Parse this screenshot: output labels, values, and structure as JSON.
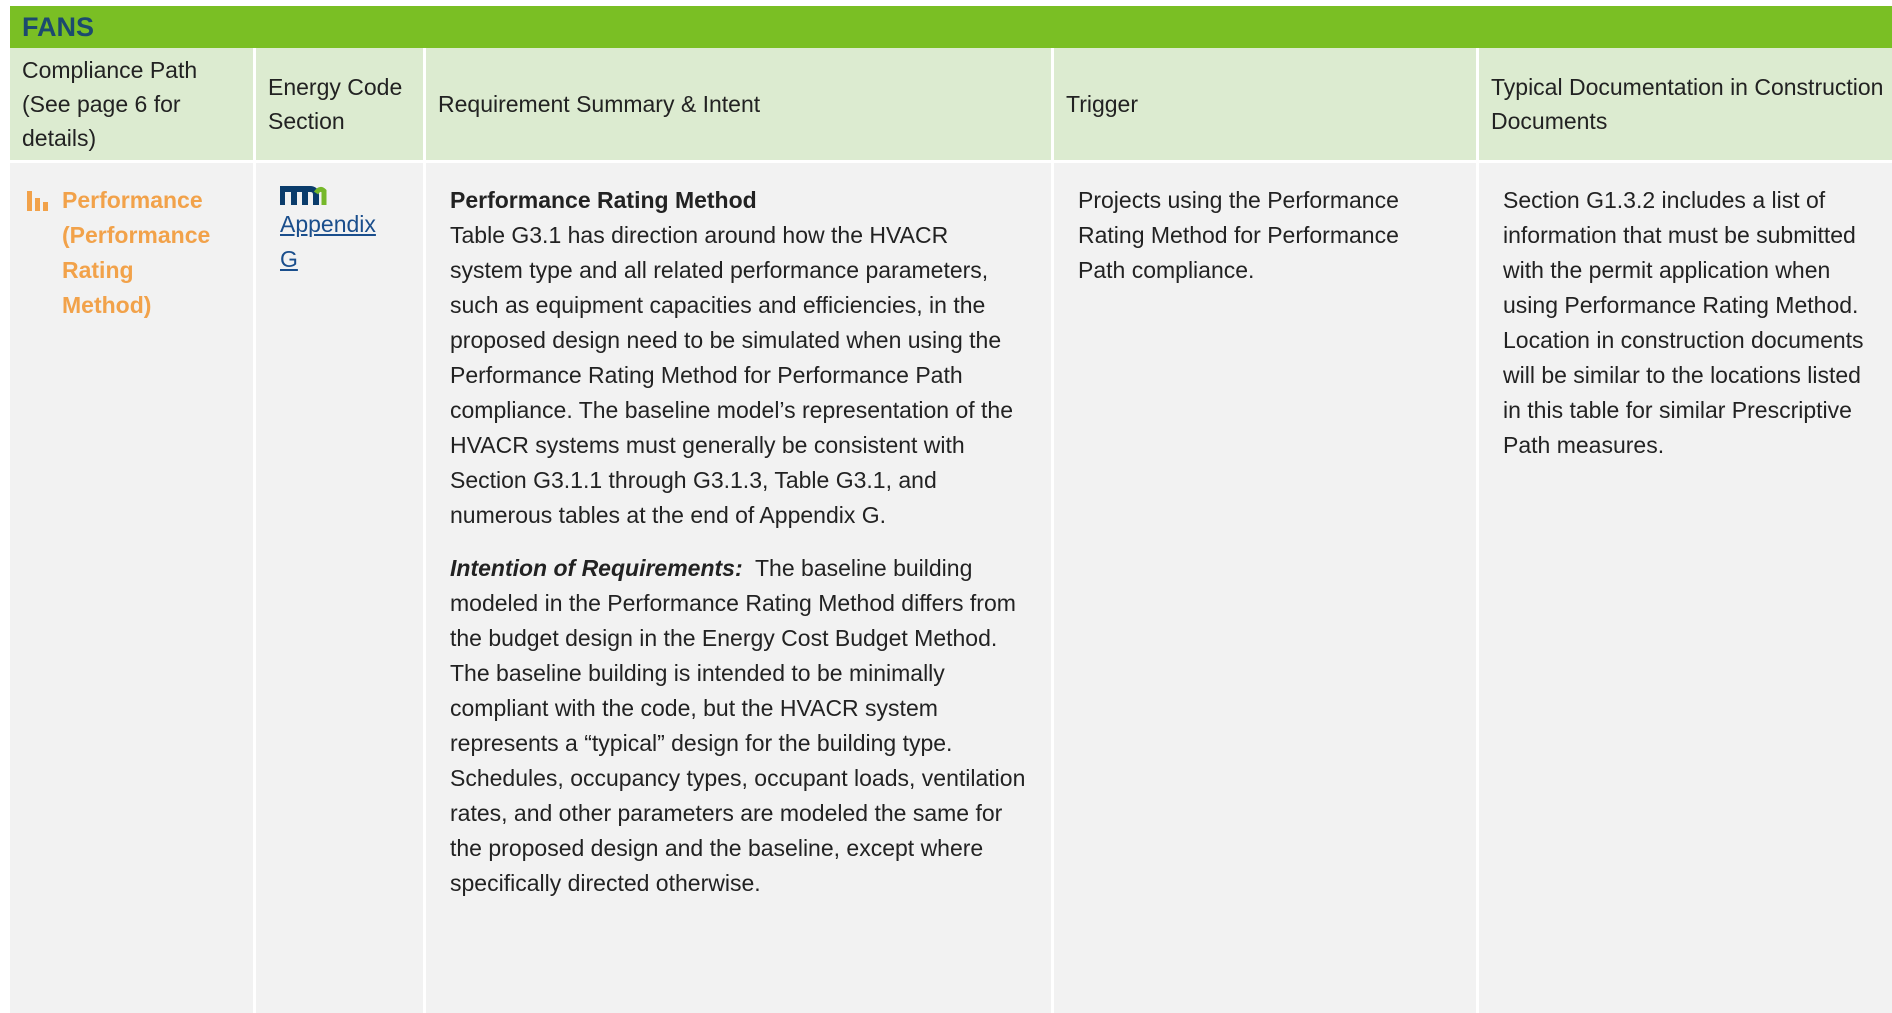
{
  "header": {
    "title": "FANS"
  },
  "table": {
    "columns": [
      "Compliance Path (See page 6 for details)",
      "Energy Code Section",
      "Requirement Summary & Intent",
      "Trigger",
      "Typical Documentation in Construction Documents"
    ],
    "rows": [
      {
        "path": "Performance (Performance Rating Method)",
        "section": "Appendix G",
        "summary": {
          "heading": "Performance Rating Method",
          "text": "Table G3.1 has direction around how the HVACR system type and all related performance parameters, such as equipment capacities and efficiencies, in the proposed design need to be simulated when using the Performance Rating Method for Performance Path compliance. The baseline model’s representation of the HVACR systems must generally be consistent with Section G3.1.1 through G3.1.3, Table G3.1, and numerous tables at the end of Appendix G.",
          "intent_label": "Intention of Requirements:",
          "intent_text": "The baseline building modeled in the Performance Rating Method differs from the budget design in the Energy Cost Budget Method. The baseline building is intended to be minimally compliant with the code, but the HVACR system represents a “typical” design for the building type. Schedules, occupancy types, occupant loads, ventilation rates, and other parameters are modeled the same for the proposed design and the baseline, except where specifically directed otherwise."
        },
        "trigger": "Projects using the Performance Rating Method for Performance Path compliance.",
        "documentation": "Section G1.3.2 includes a list of information that must be submitted with the permit application when using Performance Rating Method. Location in construction documents will be similar to the locations listed in this table for similar Prescriptive Path measures."
      }
    ]
  }
}
